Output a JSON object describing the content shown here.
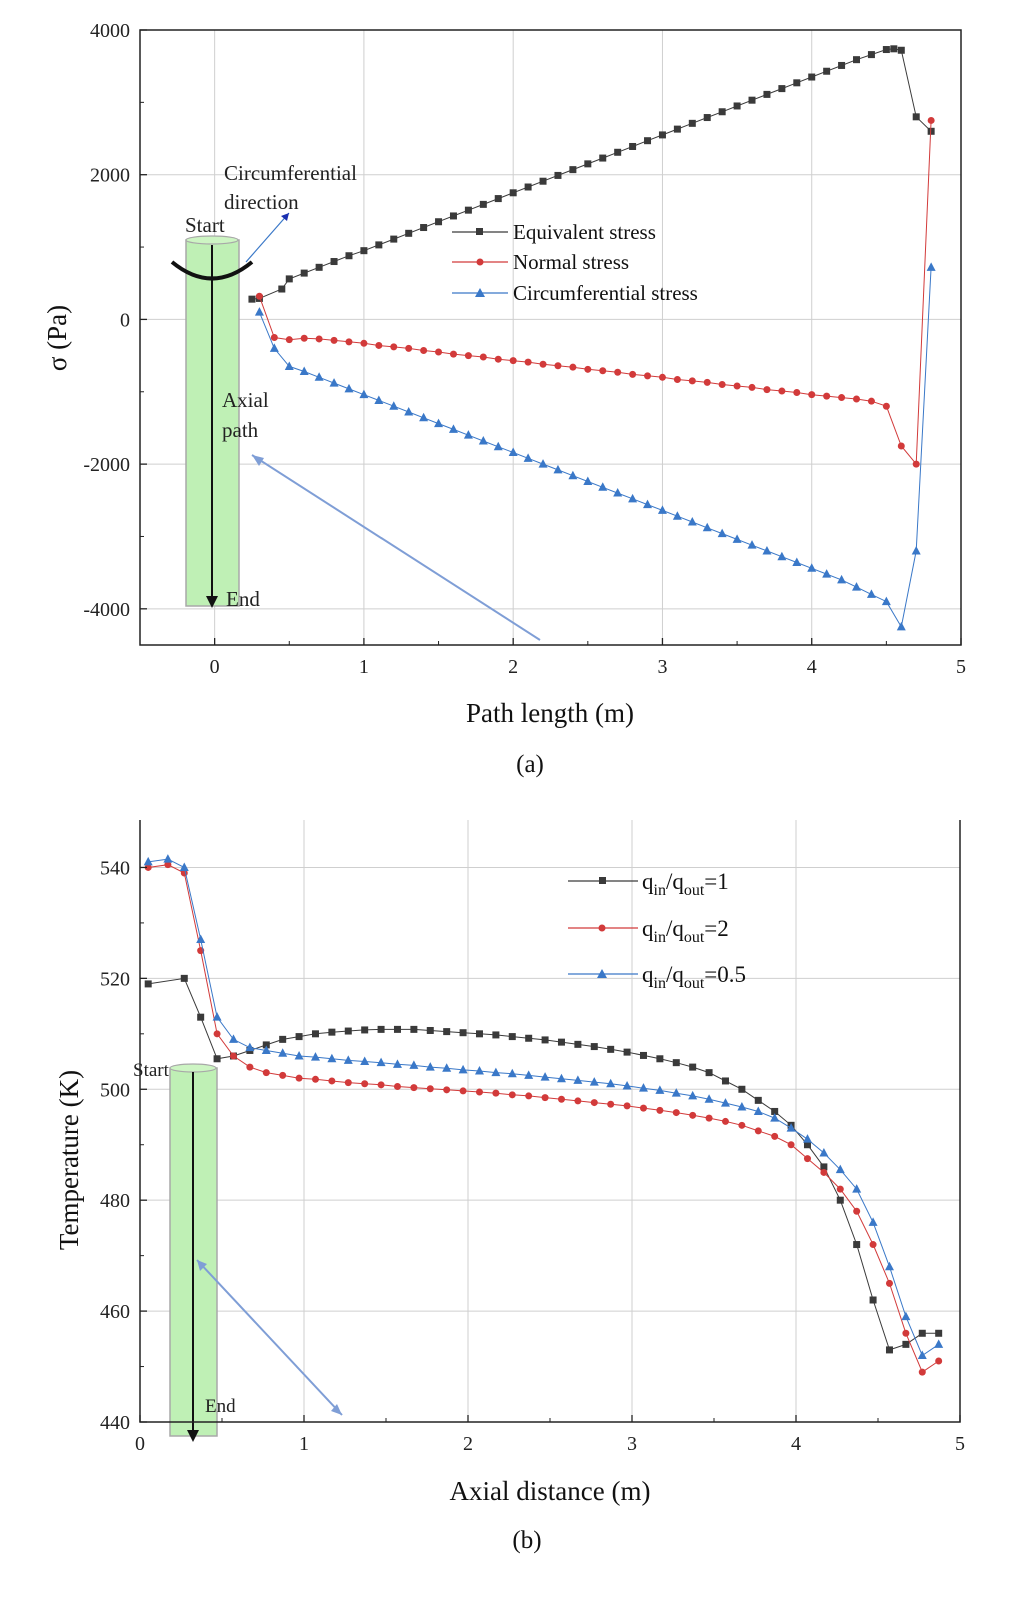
{
  "chart_data": [
    {
      "type": "line",
      "xlabel": "Path length (m)",
      "ylabel": "σ (Pa)",
      "caption": "(a)",
      "xlim": [
        -0.5,
        5
      ],
      "ylim": [
        -4500,
        4000
      ],
      "xticks": [
        "0",
        "1",
        "2",
        "3",
        "4",
        "5"
      ],
      "yticks": [
        "-4000",
        "-2000",
        "0",
        "2000",
        "4000"
      ],
      "grid": true,
      "legend_position": "center",
      "annotations": [
        "Circumferential",
        "direction",
        "Start",
        "Axial",
        "path",
        "End"
      ],
      "series": [
        {
          "name": "Equivalent stress",
          "color": "#3a3a3a",
          "marker": "square",
          "x": [
            0.25,
            0.3,
            0.45,
            0.5,
            0.6,
            0.7,
            0.8,
            0.9,
            1.0,
            1.1,
            1.2,
            1.3,
            1.4,
            1.5,
            1.6,
            1.7,
            1.8,
            1.9,
            2.0,
            2.1,
            2.2,
            2.3,
            2.4,
            2.5,
            2.6,
            2.7,
            2.8,
            2.9,
            3.0,
            3.1,
            3.2,
            3.3,
            3.4,
            3.5,
            3.6,
            3.7,
            3.8,
            3.9,
            4.0,
            4.1,
            4.2,
            4.3,
            4.4,
            4.5,
            4.55,
            4.6,
            4.7,
            4.8
          ],
          "y": [
            280,
            290,
            420,
            560,
            640,
            720,
            800,
            880,
            950,
            1030,
            1110,
            1190,
            1270,
            1350,
            1430,
            1510,
            1590,
            1670,
            1750,
            1830,
            1910,
            1990,
            2070,
            2150,
            2230,
            2310,
            2390,
            2470,
            2550,
            2630,
            2710,
            2790,
            2870,
            2950,
            3030,
            3110,
            3190,
            3270,
            3350,
            3430,
            3510,
            3590,
            3660,
            3730,
            3740,
            3720,
            2800,
            2600
          ]
        },
        {
          "name": "Normal stress",
          "color": "#d23a3a",
          "marker": "circle",
          "x": [
            0.3,
            0.4,
            0.5,
            0.6,
            0.7,
            0.8,
            0.9,
            1.0,
            1.1,
            1.2,
            1.3,
            1.4,
            1.5,
            1.6,
            1.7,
            1.8,
            1.9,
            2.0,
            2.1,
            2.2,
            2.3,
            2.4,
            2.5,
            2.6,
            2.7,
            2.8,
            2.9,
            3.0,
            3.1,
            3.2,
            3.3,
            3.4,
            3.5,
            3.6,
            3.7,
            3.8,
            3.9,
            4.0,
            4.1,
            4.2,
            4.3,
            4.4,
            4.5,
            4.6,
            4.7,
            4.8
          ],
          "y": [
            320,
            -250,
            -280,
            -260,
            -270,
            -290,
            -310,
            -330,
            -360,
            -380,
            -400,
            -430,
            -450,
            -480,
            -500,
            -520,
            -550,
            -570,
            -590,
            -620,
            -640,
            -660,
            -690,
            -710,
            -730,
            -760,
            -780,
            -800,
            -830,
            -850,
            -870,
            -900,
            -920,
            -940,
            -970,
            -990,
            -1010,
            -1040,
            -1060,
            -1080,
            -1100,
            -1130,
            -1200,
            -1750,
            -2000,
            2750
          ]
        },
        {
          "name": "Circumferential stress",
          "color": "#3a78c8",
          "marker": "triangle",
          "x": [
            0.3,
            0.4,
            0.5,
            0.6,
            0.7,
            0.8,
            0.9,
            1.0,
            1.1,
            1.2,
            1.3,
            1.4,
            1.5,
            1.6,
            1.7,
            1.8,
            1.9,
            2.0,
            2.1,
            2.2,
            2.3,
            2.4,
            2.5,
            2.6,
            2.7,
            2.8,
            2.9,
            3.0,
            3.1,
            3.2,
            3.3,
            3.4,
            3.5,
            3.6,
            3.7,
            3.8,
            3.9,
            4.0,
            4.1,
            4.2,
            4.3,
            4.4,
            4.5,
            4.6,
            4.7,
            4.8
          ],
          "y": [
            100,
            -400,
            -650,
            -720,
            -800,
            -880,
            -960,
            -1040,
            -1120,
            -1200,
            -1280,
            -1360,
            -1440,
            -1520,
            -1600,
            -1680,
            -1760,
            -1840,
            -1920,
            -2000,
            -2080,
            -2160,
            -2240,
            -2320,
            -2400,
            -2480,
            -2560,
            -2640,
            -2720,
            -2800,
            -2880,
            -2960,
            -3040,
            -3120,
            -3200,
            -3280,
            -3360,
            -3440,
            -3520,
            -3600,
            -3700,
            -3800,
            -3900,
            -4250,
            -3200,
            720
          ]
        }
      ]
    },
    {
      "type": "line",
      "xlabel": "Axial distance (m)",
      "ylabel": "Temperature (K)",
      "caption": "(b)",
      "xlim": [
        0,
        5
      ],
      "ylim": [
        440,
        550
      ],
      "xticks": [
        "0",
        "1",
        "2",
        "3",
        "4",
        "5"
      ],
      "yticks": [
        "440",
        "460",
        "480",
        "500",
        "520",
        "540"
      ],
      "grid": true,
      "legend_position": "top-right",
      "annotations": [
        "Start",
        "End"
      ],
      "series": [
        {
          "name_parts": [
            "q",
            "in",
            "/q",
            "out",
            "=1"
          ],
          "color": "#3a3a3a",
          "marker": "square",
          "x": [
            0.05,
            0.27,
            0.37,
            0.47,
            0.57,
            0.67,
            0.77,
            0.87,
            0.97,
            1.07,
            1.17,
            1.27,
            1.37,
            1.47,
            1.57,
            1.67,
            1.77,
            1.87,
            1.97,
            2.07,
            2.17,
            2.27,
            2.37,
            2.47,
            2.57,
            2.67,
            2.77,
            2.87,
            2.97,
            3.07,
            3.17,
            3.27,
            3.37,
            3.47,
            3.57,
            3.67,
            3.77,
            3.87,
            3.97,
            4.07,
            4.17,
            4.27,
            4.37,
            4.47,
            4.57,
            4.67,
            4.77,
            4.87
          ],
          "y": [
            519,
            520,
            513,
            505.5,
            506,
            507,
            508,
            509,
            509.5,
            510,
            510.3,
            510.5,
            510.7,
            510.8,
            510.8,
            510.8,
            510.6,
            510.4,
            510.2,
            510,
            509.8,
            509.5,
            509.2,
            508.9,
            508.5,
            508.1,
            507.7,
            507.2,
            506.7,
            506.1,
            505.5,
            504.8,
            504,
            503,
            501.5,
            500,
            498,
            496,
            493.5,
            490,
            486,
            480,
            472,
            462,
            453,
            454,
            456,
            456
          ]
        },
        {
          "name_parts": [
            "q",
            "in",
            "/q",
            "out",
            "=2"
          ],
          "color": "#d23a3a",
          "marker": "circle",
          "x": [
            0.05,
            0.17,
            0.27,
            0.37,
            0.47,
            0.57,
            0.67,
            0.77,
            0.87,
            0.97,
            1.07,
            1.17,
            1.27,
            1.37,
            1.47,
            1.57,
            1.67,
            1.77,
            1.87,
            1.97,
            2.07,
            2.17,
            2.27,
            2.37,
            2.47,
            2.57,
            2.67,
            2.77,
            2.87,
            2.97,
            3.07,
            3.17,
            3.27,
            3.37,
            3.47,
            3.57,
            3.67,
            3.77,
            3.87,
            3.97,
            4.07,
            4.17,
            4.27,
            4.37,
            4.47,
            4.57,
            4.67,
            4.77,
            4.87
          ],
          "y": [
            540,
            540.5,
            539,
            525,
            510,
            506,
            504,
            503,
            502.5,
            502,
            501.8,
            501.5,
            501.2,
            501,
            500.8,
            500.5,
            500.3,
            500.1,
            499.9,
            499.7,
            499.5,
            499.3,
            499,
            498.8,
            498.5,
            498.2,
            497.9,
            497.6,
            497.3,
            497,
            496.6,
            496.2,
            495.8,
            495.3,
            494.8,
            494.2,
            493.5,
            492.5,
            491.5,
            490,
            487.5,
            485,
            482,
            478,
            472,
            465,
            456,
            449,
            451
          ]
        },
        {
          "name_parts": [
            "q",
            "in",
            "/q",
            "out",
            "=0.5"
          ],
          "color": "#3a78c8",
          "marker": "triangle",
          "x": [
            0.05,
            0.17,
            0.27,
            0.37,
            0.47,
            0.57,
            0.67,
            0.77,
            0.87,
            0.97,
            1.07,
            1.17,
            1.27,
            1.37,
            1.47,
            1.57,
            1.67,
            1.77,
            1.87,
            1.97,
            2.07,
            2.17,
            2.27,
            2.37,
            2.47,
            2.57,
            2.67,
            2.77,
            2.87,
            2.97,
            3.07,
            3.17,
            3.27,
            3.37,
            3.47,
            3.57,
            3.67,
            3.77,
            3.87,
            3.97,
            4.07,
            4.17,
            4.27,
            4.37,
            4.47,
            4.57,
            4.67,
            4.77,
            4.87
          ],
          "y": [
            541,
            541.5,
            540,
            527,
            513,
            509,
            507.5,
            507,
            506.5,
            506,
            505.8,
            505.5,
            505.2,
            505,
            504.8,
            504.5,
            504.3,
            504,
            503.8,
            503.5,
            503.3,
            503,
            502.8,
            502.5,
            502.2,
            501.9,
            501.6,
            501.3,
            501,
            500.6,
            500.2,
            499.8,
            499.3,
            498.8,
            498.2,
            497.5,
            496.8,
            496,
            494.8,
            493,
            491,
            488.5,
            485.5,
            482,
            476,
            468,
            459,
            452,
            454
          ]
        }
      ]
    }
  ],
  "legend_a": [
    "Equivalent stress",
    "Normal stress",
    "Circumferential stress"
  ]
}
